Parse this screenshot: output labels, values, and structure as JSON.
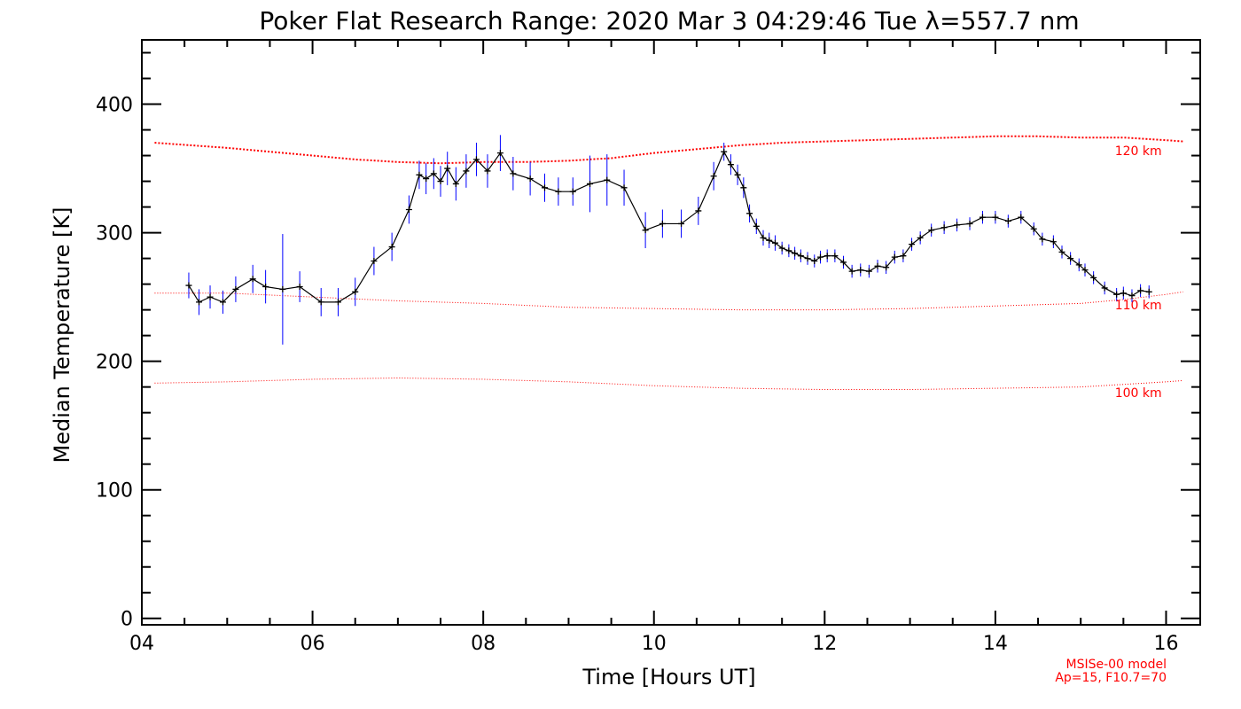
{
  "chart_data": {
    "type": "line",
    "title": "Poker Flat Research Range: 2020 Mar  3 04:29:46 Tue λ=557.7 nm",
    "xlabel": "Time [Hours UT]",
    "ylabel": "Median Temperature [K]",
    "xlim": [
      4.0,
      16.4
    ],
    "ylim": [
      -5,
      450
    ],
    "xticks": [
      {
        "v": 4,
        "label": "04"
      },
      {
        "v": 6,
        "label": "06"
      },
      {
        "v": 8,
        "label": "08"
      },
      {
        "v": 10,
        "label": "10"
      },
      {
        "v": 12,
        "label": "12"
      },
      {
        "v": 14,
        "label": "14"
      },
      {
        "v": 16,
        "label": "16"
      }
    ],
    "yticks": [
      {
        "v": 0,
        "label": "0"
      },
      {
        "v": 100,
        "label": "100"
      },
      {
        "v": 200,
        "label": "200"
      },
      {
        "v": 300,
        "label": "300"
      },
      {
        "v": 400,
        "label": "400"
      }
    ],
    "colors": {
      "data_line": "#000000",
      "error_bar": "#0000ff",
      "model": "#ff0000"
    },
    "series": [
      {
        "style": "line with error bars",
        "x": [
          4.55,
          4.67,
          4.8,
          4.95,
          5.1,
          5.3,
          5.45,
          5.65,
          5.85,
          6.1,
          6.3,
          6.5,
          6.72,
          6.93,
          7.13,
          7.25,
          7.33,
          7.42,
          7.5,
          7.58,
          7.68,
          7.8,
          7.92,
          8.05,
          8.2,
          8.35,
          8.55,
          8.72,
          8.88,
          9.05,
          9.25,
          9.45,
          9.65,
          9.9,
          10.1,
          10.32,
          10.52,
          10.7,
          10.82,
          10.9,
          10.98,
          11.05,
          11.12,
          11.2,
          11.28,
          11.35,
          11.42,
          11.5,
          11.58,
          11.65,
          11.72,
          11.8,
          11.88,
          11.95,
          12.03,
          12.12,
          12.22,
          12.32,
          12.42,
          12.52,
          12.62,
          12.72,
          12.82,
          12.92,
          13.02,
          13.12,
          13.25,
          13.4,
          13.55,
          13.7,
          13.85,
          14.0,
          14.15,
          14.3,
          14.45,
          14.55,
          14.68,
          14.78,
          14.88,
          14.98,
          15.05,
          15.15,
          15.28,
          15.42,
          15.5,
          15.6,
          15.7,
          15.8
        ],
        "y": [
          259,
          246,
          250,
          246,
          256,
          264,
          258,
          256,
          258,
          246,
          246,
          254,
          278,
          289,
          318,
          345,
          342,
          346,
          340,
          350,
          338,
          348,
          357,
          348,
          362,
          346,
          342,
          335,
          332,
          332,
          338,
          341,
          335,
          302,
          307,
          307,
          317,
          344,
          363,
          353,
          345,
          335,
          315,
          305,
          296,
          294,
          292,
          288,
          286,
          284,
          282,
          280,
          278,
          281,
          282,
          282,
          277,
          270,
          271,
          270,
          274,
          273,
          281,
          282,
          291,
          296,
          302,
          304,
          306,
          307,
          312,
          312,
          309,
          312,
          303,
          295,
          293,
          285,
          280,
          275,
          271,
          265,
          257,
          252,
          253,
          251,
          255,
          254
        ],
        "err": [
          10,
          10,
          9,
          9,
          10,
          11,
          13,
          43,
          12,
          11,
          11,
          11,
          11,
          11,
          11,
          11,
          12,
          12,
          12,
          13,
          13,
          13,
          13,
          13,
          14,
          13,
          13,
          11,
          11,
          11,
          22,
          20,
          14,
          14,
          11,
          11,
          11,
          11,
          7,
          8,
          8,
          8,
          7,
          6,
          6,
          6,
          6,
          5,
          5,
          5,
          5,
          5,
          5,
          5,
          5,
          5,
          5,
          5,
          5,
          5,
          5,
          5,
          5,
          5,
          5,
          5,
          5,
          5,
          5,
          5,
          5,
          5,
          5,
          5,
          5,
          5,
          5,
          5,
          5,
          5,
          5,
          5,
          5,
          5,
          5,
          5,
          5,
          5
        ]
      },
      {
        "name": "120 km",
        "style": "model dotted thick",
        "x": [
          4.15,
          5.0,
          6.0,
          6.5,
          7.0,
          7.5,
          8.0,
          8.5,
          9.0,
          9.5,
          10.0,
          10.5,
          11.0,
          11.5,
          12.0,
          12.5,
          13.0,
          13.5,
          14.0,
          14.5,
          15.0,
          15.5,
          16.0,
          16.2
        ],
        "y": [
          370,
          366,
          360,
          357,
          355,
          354,
          355,
          355,
          356,
          358,
          362,
          365,
          368,
          370,
          371,
          372,
          373,
          374,
          375,
          375,
          374,
          374,
          372,
          371
        ]
      },
      {
        "name": "110 km",
        "style": "model dotted thin",
        "x": [
          4.15,
          5.0,
          6.0,
          7.0,
          8.0,
          9.0,
          10.0,
          11.0,
          12.0,
          13.0,
          14.0,
          15.0,
          15.5,
          16.0,
          16.2
        ],
        "y": [
          253,
          253,
          250,
          247,
          245,
          242,
          241,
          240,
          240,
          241,
          243,
          245,
          248,
          252,
          254
        ]
      },
      {
        "name": "100 km",
        "style": "model dotted thin",
        "x": [
          4.15,
          5.0,
          6.0,
          7.0,
          8.0,
          9.0,
          10.0,
          11.0,
          12.0,
          13.0,
          14.0,
          15.0,
          16.0,
          16.2
        ],
        "y": [
          183,
          184,
          186,
          187,
          186,
          184,
          181,
          179,
          178,
          178,
          179,
          180,
          184,
          185
        ]
      }
    ],
    "annotations": [
      "MSISe-00 model",
      "Ap=15, F10.7=70"
    ]
  }
}
